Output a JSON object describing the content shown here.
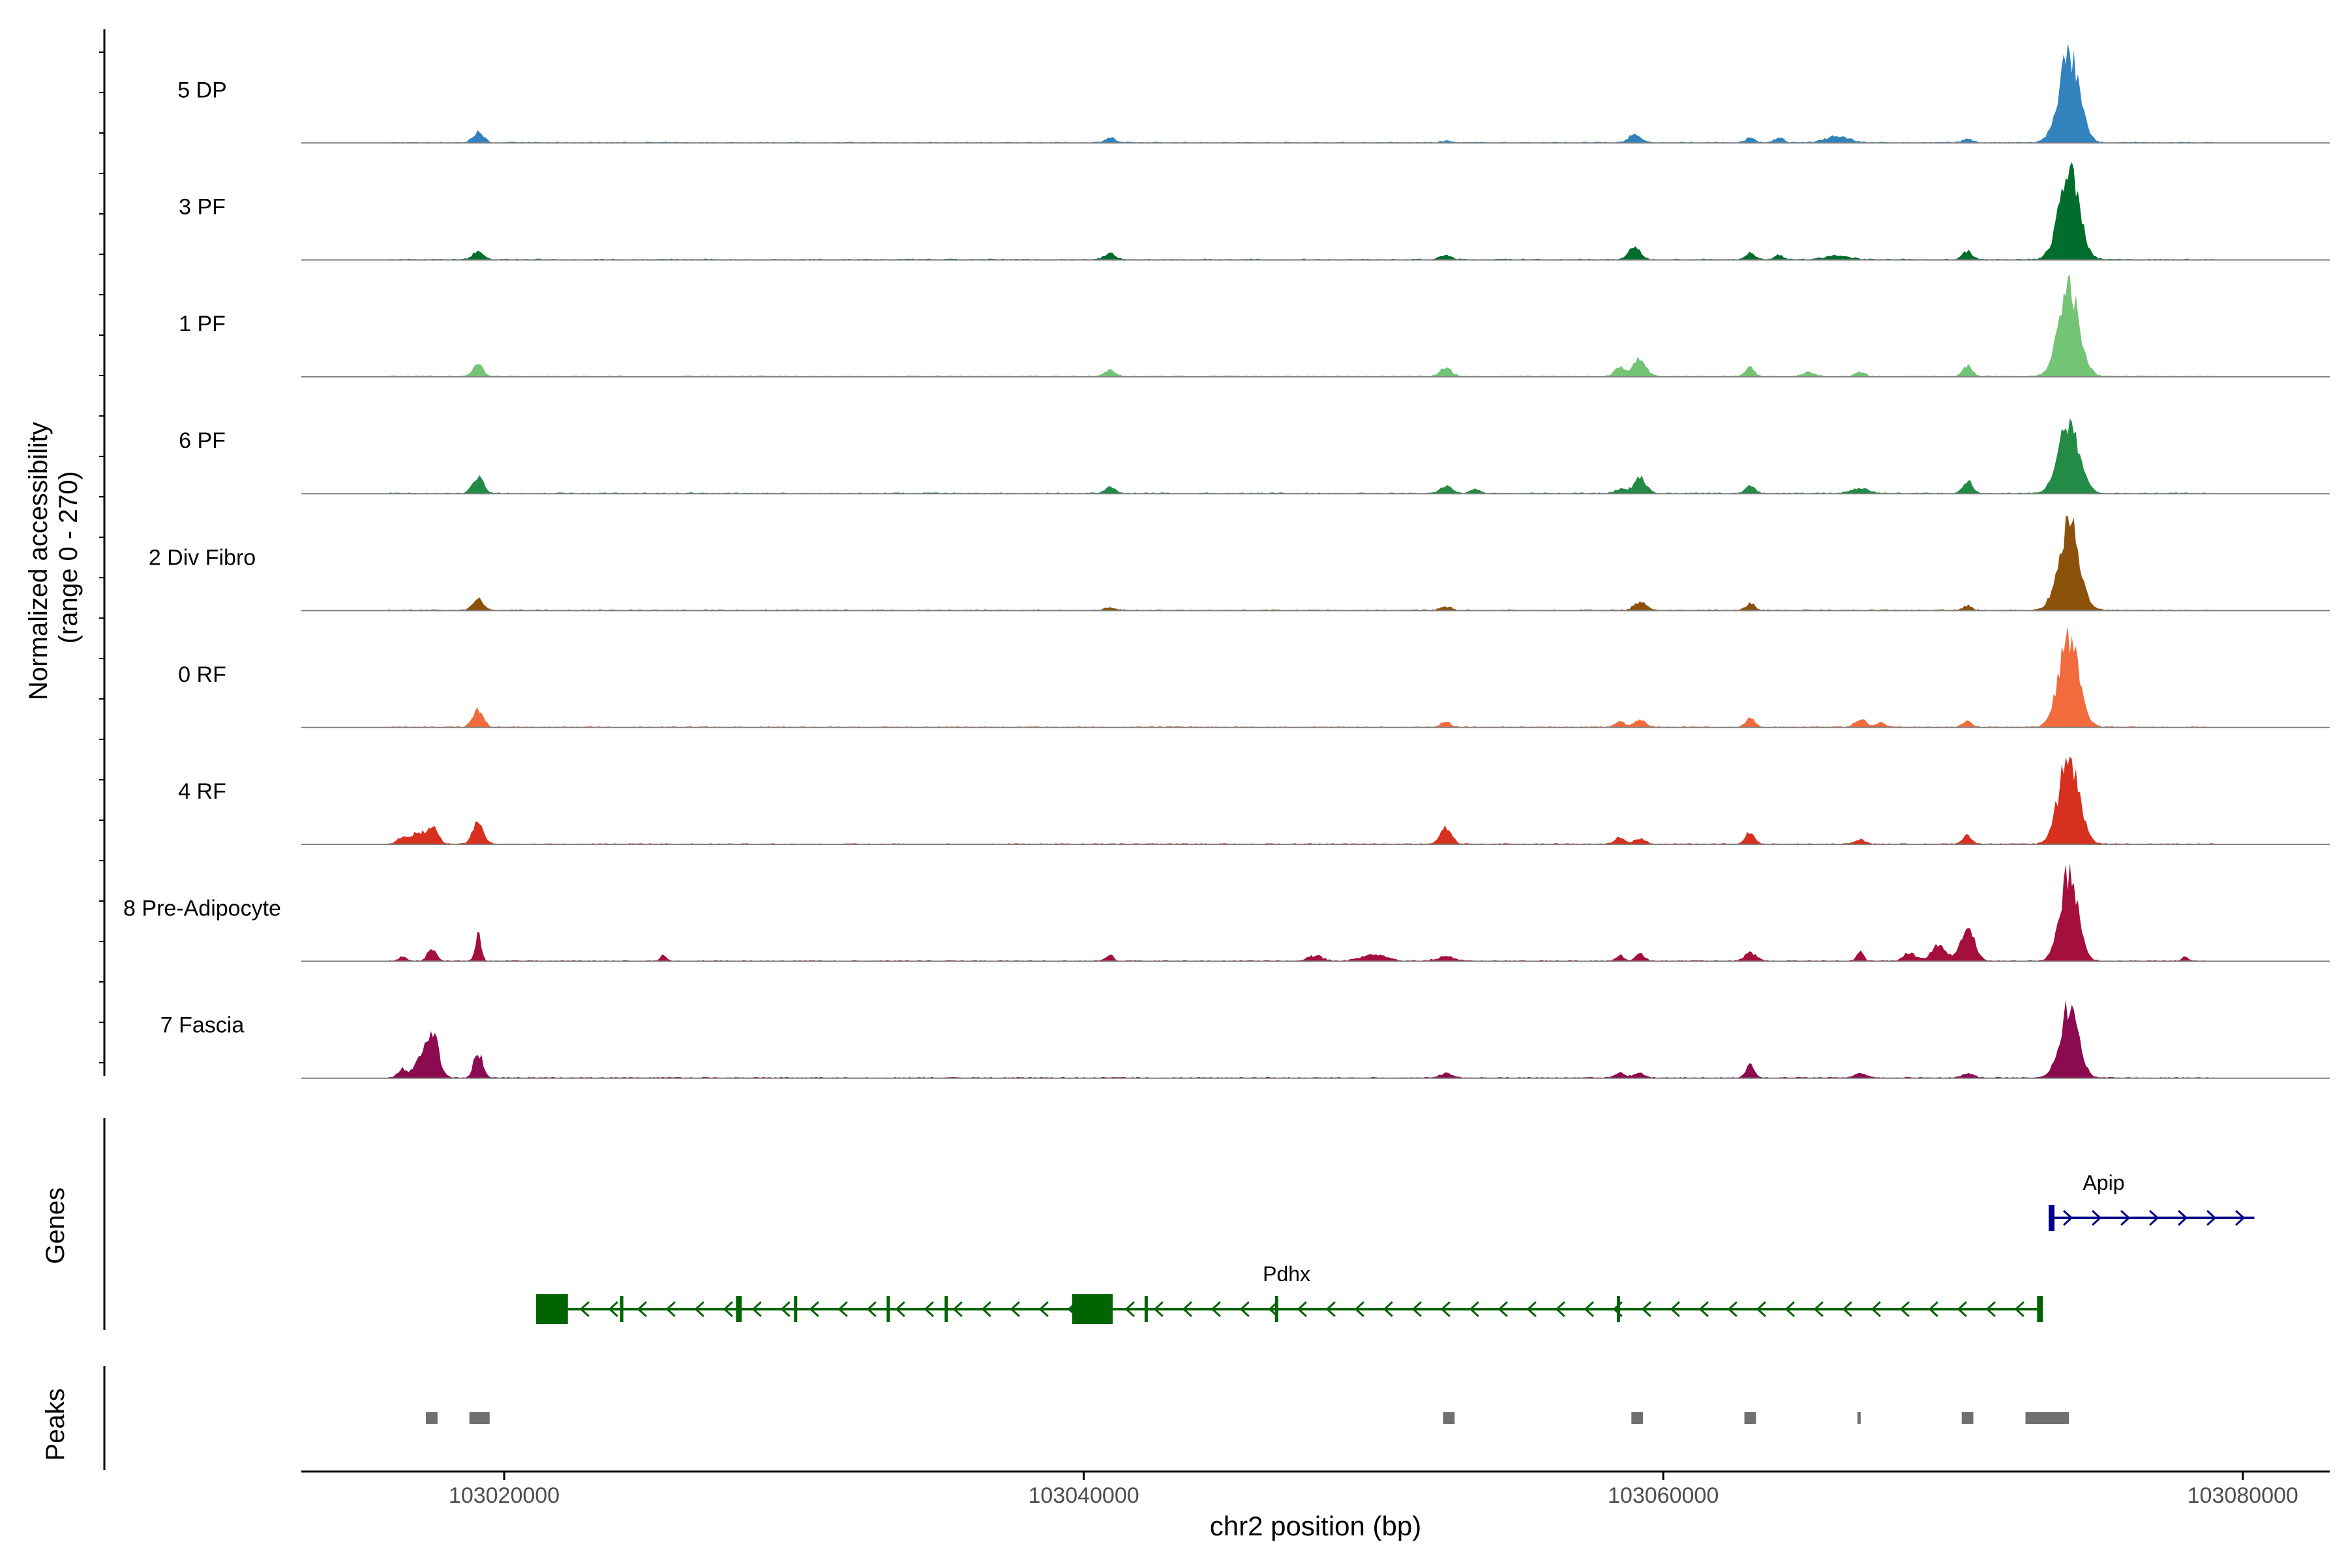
{
  "chart_data": {
    "type": "area",
    "y_axis_label_line1": "Normalized accessibility",
    "y_axis_label_line2": "(range 0 - 270)",
    "x_axis_label": "chr2 position (bp)",
    "xlim": [
      103013000,
      103083000
    ],
    "ylim": [
      0,
      270
    ],
    "x_ticks": [
      {
        "value": 103020000,
        "label": "103020000"
      },
      {
        "value": 103040000,
        "label": "103040000"
      },
      {
        "value": 103060000,
        "label": "103060000"
      },
      {
        "value": 103080000,
        "label": "103080000"
      }
    ],
    "grid": false,
    "series": [
      {
        "name": "5 DP",
        "color": "#3182bd",
        "peaks": [
          [
            103019100,
            0.12,
            180
          ],
          [
            103040900,
            0.06,
            180
          ],
          [
            103052500,
            0.02,
            160
          ],
          [
            103059000,
            0.1,
            200
          ],
          [
            103063000,
            0.06,
            160
          ],
          [
            103064000,
            0.05,
            160
          ],
          [
            103066000,
            0.08,
            400
          ],
          [
            103070500,
            0.05,
            160
          ],
          [
            103074000,
            1.0,
            350
          ]
        ]
      },
      {
        "name": "3 PF",
        "color": "#006d2c",
        "peaks": [
          [
            103019100,
            0.1,
            180
          ],
          [
            103040900,
            0.08,
            180
          ],
          [
            103052500,
            0.05,
            200
          ],
          [
            103059000,
            0.15,
            200
          ],
          [
            103063000,
            0.08,
            160
          ],
          [
            103064000,
            0.05,
            160
          ],
          [
            103066000,
            0.05,
            400
          ],
          [
            103070500,
            0.1,
            160
          ],
          [
            103074000,
            1.0,
            350
          ]
        ]
      },
      {
        "name": "1 PF",
        "color": "#74c476",
        "peaks": [
          [
            103019100,
            0.14,
            180
          ],
          [
            103040900,
            0.08,
            180
          ],
          [
            103052500,
            0.1,
            200
          ],
          [
            103058500,
            0.12,
            180
          ],
          [
            103059200,
            0.2,
            220
          ],
          [
            103063000,
            0.1,
            160
          ],
          [
            103065000,
            0.05,
            200
          ],
          [
            103066800,
            0.06,
            160
          ],
          [
            103070500,
            0.12,
            160
          ],
          [
            103074000,
            1.0,
            350
          ]
        ]
      },
      {
        "name": "6 PF",
        "color": "#238b45",
        "peaks": [
          [
            103019100,
            0.2,
            180
          ],
          [
            103040900,
            0.07,
            180
          ],
          [
            103052500,
            0.08,
            200
          ],
          [
            103053500,
            0.05,
            160
          ],
          [
            103058500,
            0.05,
            180
          ],
          [
            103059200,
            0.18,
            220
          ],
          [
            103063000,
            0.1,
            160
          ],
          [
            103066800,
            0.06,
            300
          ],
          [
            103070500,
            0.15,
            160
          ],
          [
            103074000,
            0.85,
            350
          ]
        ]
      },
      {
        "name": "2 Div Fibro",
        "color": "#8c510a",
        "peaks": [
          [
            103019100,
            0.15,
            180
          ],
          [
            103040900,
            0.03,
            180
          ],
          [
            103052500,
            0.04,
            200
          ],
          [
            103059200,
            0.1,
            200
          ],
          [
            103063000,
            0.08,
            160
          ],
          [
            103070500,
            0.05,
            160
          ],
          [
            103074000,
            1.0,
            350
          ]
        ]
      },
      {
        "name": "0 RF",
        "color": "#f16b3c",
        "peaks": [
          [
            103019100,
            0.2,
            180
          ],
          [
            103052500,
            0.06,
            180
          ],
          [
            103058500,
            0.06,
            160
          ],
          [
            103059200,
            0.08,
            200
          ],
          [
            103063000,
            0.1,
            160
          ],
          [
            103066800,
            0.1,
            180
          ],
          [
            103067500,
            0.05,
            160
          ],
          [
            103070500,
            0.08,
            160
          ],
          [
            103074000,
            1.0,
            350
          ]
        ]
      },
      {
        "name": "4 RF",
        "color": "#d7301f",
        "peaks": [
          [
            103016500,
            0.08,
            180
          ],
          [
            103017000,
            0.12,
            180
          ],
          [
            103017500,
            0.22,
            200
          ],
          [
            103019100,
            0.25,
            180
          ],
          [
            103052500,
            0.18,
            200
          ],
          [
            103058500,
            0.08,
            160
          ],
          [
            103059200,
            0.06,
            200
          ],
          [
            103063000,
            0.15,
            160
          ],
          [
            103066800,
            0.06,
            160
          ],
          [
            103070500,
            0.1,
            160
          ],
          [
            103074000,
            1.0,
            350
          ]
        ]
      },
      {
        "name": "8 Pre-Adipocyte",
        "color": "#a50f3c",
        "peaks": [
          [
            103016500,
            0.05,
            120
          ],
          [
            103017500,
            0.15,
            150
          ],
          [
            103019100,
            0.3,
            100
          ],
          [
            103025500,
            0.06,
            100
          ],
          [
            103040900,
            0.08,
            120
          ],
          [
            103048000,
            0.06,
            250
          ],
          [
            103050000,
            0.08,
            400
          ],
          [
            103052500,
            0.05,
            300
          ],
          [
            103058500,
            0.07,
            120
          ],
          [
            103059200,
            0.08,
            150
          ],
          [
            103063000,
            0.1,
            200
          ],
          [
            103066800,
            0.1,
            120
          ],
          [
            103068500,
            0.1,
            200
          ],
          [
            103069500,
            0.18,
            250
          ],
          [
            103070500,
            0.35,
            250
          ],
          [
            103074000,
            1.0,
            300
          ],
          [
            103078000,
            0.06,
            100
          ]
        ]
      },
      {
        "name": "7 Fascia",
        "color": "#8b0a50",
        "peaks": [
          [
            103016500,
            0.1,
            150
          ],
          [
            103017000,
            0.15,
            180
          ],
          [
            103017500,
            0.55,
            220
          ],
          [
            103019100,
            0.3,
            150
          ],
          [
            103052500,
            0.05,
            200
          ],
          [
            103058500,
            0.05,
            200
          ],
          [
            103059200,
            0.05,
            200
          ],
          [
            103063000,
            0.15,
            140
          ],
          [
            103066800,
            0.05,
            200
          ],
          [
            103070500,
            0.05,
            200
          ],
          [
            103074000,
            0.8,
            320
          ]
        ]
      }
    ],
    "genes_track_label": "Genes",
    "genes": [
      {
        "name": "Apip",
        "strand": "+",
        "color": "#00008b",
        "start": 103073300,
        "end": 103080400,
        "exons": [
          [
            103073300,
            103073500
          ]
        ]
      },
      {
        "name": "Pdhx",
        "strand": "-",
        "color": "#006400",
        "start": 103021100,
        "end": 103073100,
        "exons": [
          [
            103021100,
            103022200
          ],
          [
            103024000,
            103024100
          ],
          [
            103028000,
            103028200
          ],
          [
            103030000,
            103030100
          ],
          [
            103033200,
            103033300
          ],
          [
            103035200,
            103035300
          ],
          [
            103039600,
            103041000
          ],
          [
            103042100,
            103042200
          ],
          [
            103046600,
            103046700
          ],
          [
            103058400,
            103058500
          ],
          [
            103072900,
            103073100
          ]
        ]
      }
    ],
    "peaks_track_label": "Peaks",
    "peak_regions": [
      [
        103017300,
        103017700
      ],
      [
        103018800,
        103019500
      ],
      [
        103052400,
        103052800
      ],
      [
        103058900,
        103059300
      ],
      [
        103062800,
        103063200
      ],
      [
        103066700,
        103066800
      ],
      [
        103070300,
        103070700
      ],
      [
        103072500,
        103074000
      ]
    ]
  }
}
